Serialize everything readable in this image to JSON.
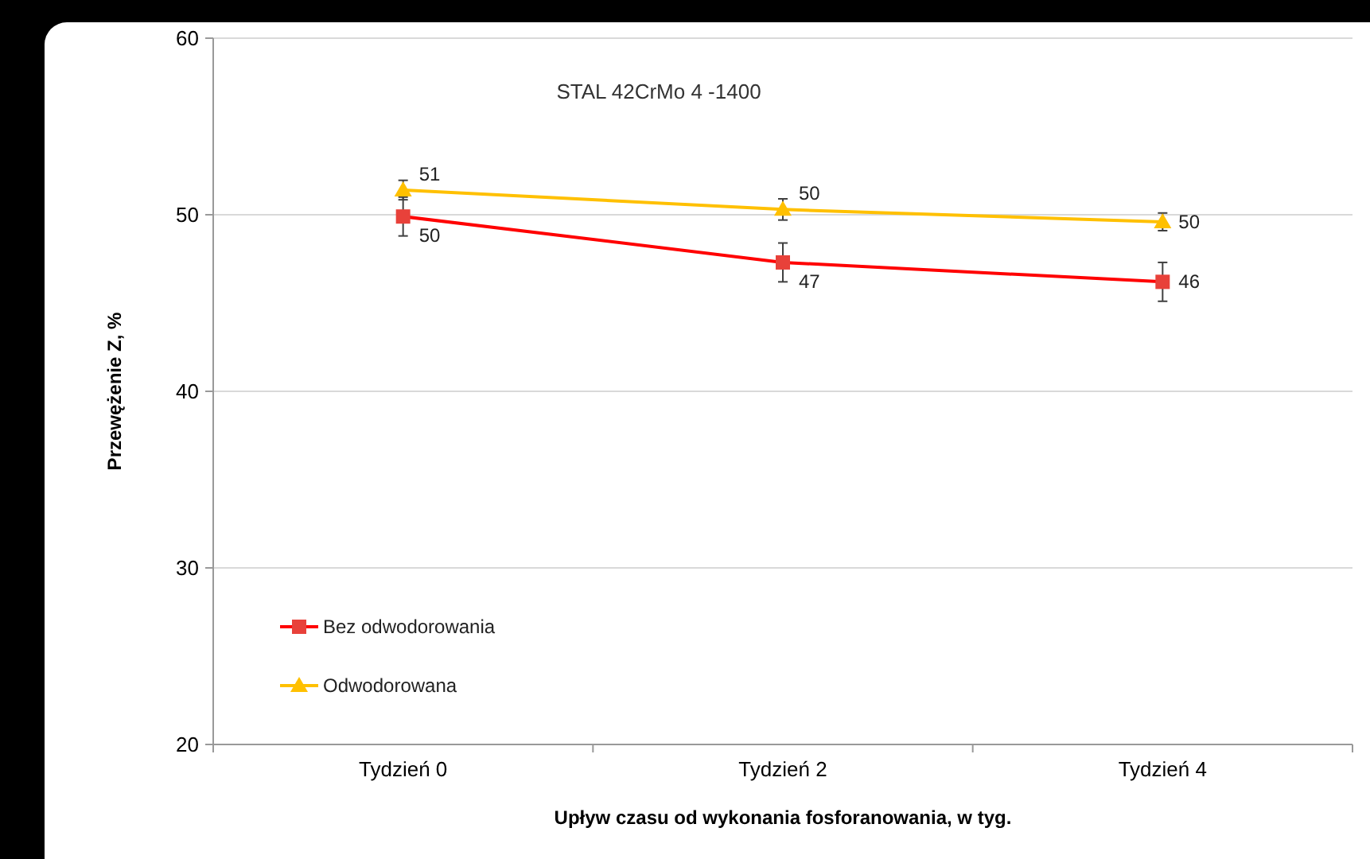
{
  "chart_data": {
    "type": "line",
    "title": "STAL 42CrMo 4 -1400",
    "xlabel": "Upływ czasu od wykonania fosforanowania, w tyg.",
    "ylabel": "Przewężenie Z, %",
    "categories": [
      "Tydzień 0",
      "Tydzień 2",
      "Tydzień 4"
    ],
    "series": [
      {
        "name": "Bez odwodorowania",
        "color": "#ff0000",
        "marker": "square",
        "values": [
          49.9,
          47.3,
          46.2
        ],
        "errors": [
          1.1,
          1.1,
          1.1
        ],
        "value_labels": [
          "50",
          "47",
          "46"
        ]
      },
      {
        "name": "Odwodorowana",
        "color": "#ffc000",
        "marker": "triangle",
        "values": [
          51.4,
          50.3,
          49.6
        ],
        "errors": [
          0.55,
          0.6,
          0.5
        ],
        "value_labels": [
          "51",
          "50",
          "50"
        ]
      }
    ],
    "ylim": [
      20,
      60
    ],
    "yticks": [
      20,
      30,
      40,
      50,
      60
    ],
    "grid": "y",
    "legend": "bottom left",
    "line_style": "solid"
  }
}
